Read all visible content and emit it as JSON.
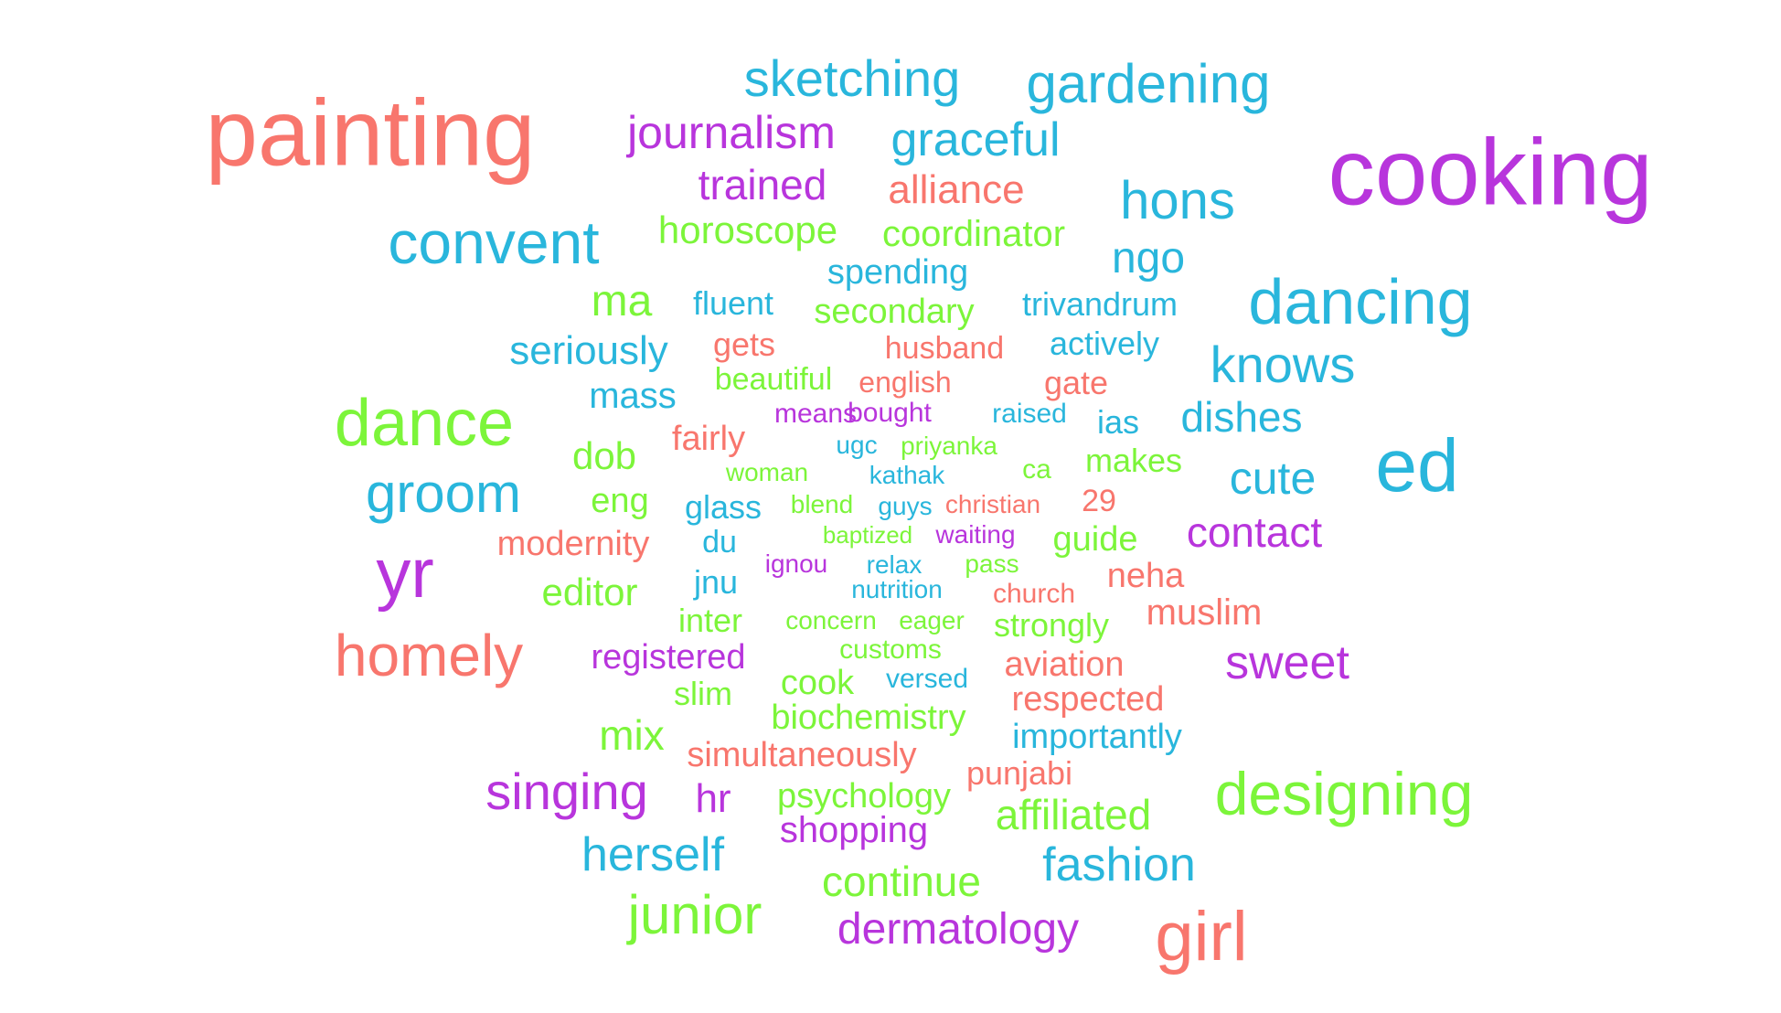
{
  "palette": {
    "red": "#f8766d",
    "green": "#7cf53a",
    "cyan": "#29b6dc",
    "purple": "#b835dc"
  },
  "words": [
    {
      "text": "painting",
      "color": "red"
    },
    {
      "text": "cooking",
      "color": "purple"
    },
    {
      "text": "sketching",
      "color": "cyan"
    },
    {
      "text": "gardening",
      "color": "cyan"
    },
    {
      "text": "journalism",
      "color": "purple"
    },
    {
      "text": "graceful",
      "color": "cyan"
    },
    {
      "text": "trained",
      "color": "purple"
    },
    {
      "text": "alliance",
      "color": "red"
    },
    {
      "text": "hons",
      "color": "cyan"
    },
    {
      "text": "convent",
      "color": "cyan"
    },
    {
      "text": "horoscope",
      "color": "green"
    },
    {
      "text": "coordinator",
      "color": "green"
    },
    {
      "text": "ngo",
      "color": "cyan"
    },
    {
      "text": "spending",
      "color": "cyan"
    },
    {
      "text": "dancing",
      "color": "cyan"
    },
    {
      "text": "ma",
      "color": "green"
    },
    {
      "text": "fluent",
      "color": "cyan"
    },
    {
      "text": "secondary",
      "color": "green"
    },
    {
      "text": "trivandrum",
      "color": "cyan"
    },
    {
      "text": "seriously",
      "color": "cyan"
    },
    {
      "text": "gets",
      "color": "red"
    },
    {
      "text": "husband",
      "color": "red"
    },
    {
      "text": "actively",
      "color": "cyan"
    },
    {
      "text": "knows",
      "color": "cyan"
    },
    {
      "text": "beautiful",
      "color": "green"
    },
    {
      "text": "english",
      "color": "red"
    },
    {
      "text": "gate",
      "color": "red"
    },
    {
      "text": "mass",
      "color": "cyan"
    },
    {
      "text": "dance",
      "color": "green"
    },
    {
      "text": "means",
      "color": "purple"
    },
    {
      "text": "bought",
      "color": "purple"
    },
    {
      "text": "raised",
      "color": "cyan"
    },
    {
      "text": "ias",
      "color": "cyan"
    },
    {
      "text": "dishes",
      "color": "cyan"
    },
    {
      "text": "fairly",
      "color": "red"
    },
    {
      "text": "dob",
      "color": "green"
    },
    {
      "text": "ugc",
      "color": "cyan"
    },
    {
      "text": "priyanka",
      "color": "green"
    },
    {
      "text": "ed",
      "color": "cyan"
    },
    {
      "text": "makes",
      "color": "green"
    },
    {
      "text": "woman",
      "color": "green"
    },
    {
      "text": "kathak",
      "color": "cyan"
    },
    {
      "text": "ca",
      "color": "green"
    },
    {
      "text": "cute",
      "color": "cyan"
    },
    {
      "text": "groom",
      "color": "cyan"
    },
    {
      "text": "eng",
      "color": "green"
    },
    {
      "text": "glass",
      "color": "cyan"
    },
    {
      "text": "blend",
      "color": "green"
    },
    {
      "text": "guys",
      "color": "cyan"
    },
    {
      "text": "christian",
      "color": "red"
    },
    {
      "text": "29",
      "color": "red"
    },
    {
      "text": "modernity",
      "color": "red"
    },
    {
      "text": "baptized",
      "color": "green"
    },
    {
      "text": "waiting",
      "color": "purple"
    },
    {
      "text": "guide",
      "color": "green"
    },
    {
      "text": "contact",
      "color": "purple"
    },
    {
      "text": "yr",
      "color": "purple"
    },
    {
      "text": "du",
      "color": "cyan"
    },
    {
      "text": "ignou",
      "color": "purple"
    },
    {
      "text": "relax",
      "color": "cyan"
    },
    {
      "text": "pass",
      "color": "green"
    },
    {
      "text": "neha",
      "color": "red"
    },
    {
      "text": "editor",
      "color": "green"
    },
    {
      "text": "jnu",
      "color": "cyan"
    },
    {
      "text": "nutrition",
      "color": "cyan"
    },
    {
      "text": "church",
      "color": "red"
    },
    {
      "text": "muslim",
      "color": "red"
    },
    {
      "text": "inter",
      "color": "green"
    },
    {
      "text": "concern",
      "color": "green"
    },
    {
      "text": "eager",
      "color": "green"
    },
    {
      "text": "strongly",
      "color": "green"
    },
    {
      "text": "homely",
      "color": "red"
    },
    {
      "text": "registered",
      "color": "purple"
    },
    {
      "text": "customs",
      "color": "green"
    },
    {
      "text": "aviation",
      "color": "red"
    },
    {
      "text": "sweet",
      "color": "purple"
    },
    {
      "text": "slim",
      "color": "green"
    },
    {
      "text": "cook",
      "color": "green"
    },
    {
      "text": "versed",
      "color": "cyan"
    },
    {
      "text": "respected",
      "color": "red"
    },
    {
      "text": "mix",
      "color": "green"
    },
    {
      "text": "biochemistry",
      "color": "green"
    },
    {
      "text": "importantly",
      "color": "cyan"
    },
    {
      "text": "simultaneously",
      "color": "red"
    },
    {
      "text": "punjabi",
      "color": "red"
    },
    {
      "text": "singing",
      "color": "purple"
    },
    {
      "text": "hr",
      "color": "purple"
    },
    {
      "text": "psychology",
      "color": "green"
    },
    {
      "text": "designing",
      "color": "green"
    },
    {
      "text": "affiliated",
      "color": "green"
    },
    {
      "text": "shopping",
      "color": "purple"
    },
    {
      "text": "herself",
      "color": "cyan"
    },
    {
      "text": "fashion",
      "color": "cyan"
    },
    {
      "text": "continue",
      "color": "green"
    },
    {
      "text": "junior",
      "color": "green"
    },
    {
      "text": "dermatology",
      "color": "purple"
    },
    {
      "text": "girl",
      "color": "red"
    }
  ]
}
